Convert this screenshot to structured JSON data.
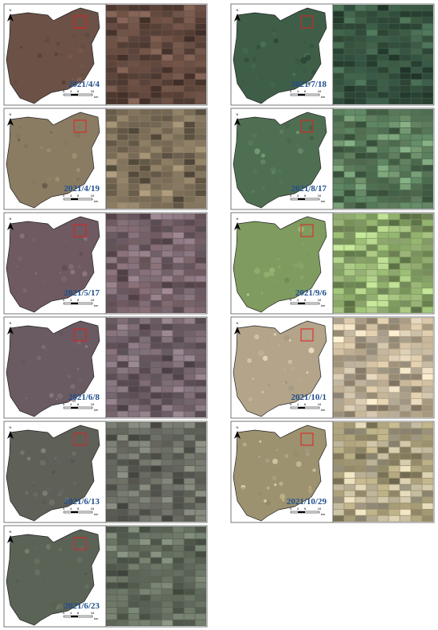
{
  "north_label": "N",
  "scale_bar": {
    "labels": [
      "0",
      "4",
      "8",
      "16"
    ],
    "unit": "km"
  },
  "left_column": [
    {
      "date": "2021/4/4"
    },
    {
      "date": "2021/4/19"
    },
    {
      "date": "2021/5/17"
    },
    {
      "date": "2021/6/8"
    },
    {
      "date": "2021/6/13"
    },
    {
      "date": "2021/6/23"
    }
  ],
  "right_column": [
    {
      "date": "2021/7/18"
    },
    {
      "date": "2021/8/17"
    },
    {
      "date": "2021/9/6"
    },
    {
      "date": "2021/10/1"
    },
    {
      "date": "2021/10/29"
    }
  ]
}
